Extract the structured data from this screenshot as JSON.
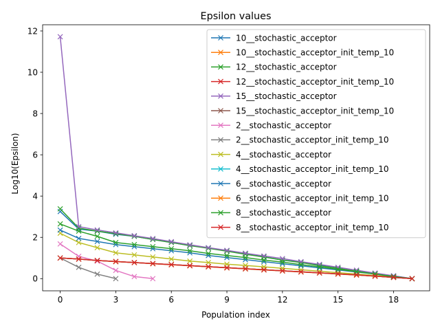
{
  "chart_data": {
    "type": "line",
    "title": "Epsilon values",
    "xlabel": "Population index",
    "ylabel": "Log10(Epsilon)",
    "xlim": [
      -0.95,
      19.95
    ],
    "ylim": [
      -0.59,
      12.3
    ],
    "xticks": [
      0,
      3,
      6,
      9,
      12,
      15,
      18
    ],
    "yticks": [
      0,
      2,
      4,
      6,
      8,
      10,
      12
    ],
    "grid": false,
    "legend_position": "top-right",
    "marker": "x",
    "series": [
      {
        "name": "10__stochastic_acceptor",
        "color": "#1f77b4",
        "x": [
          0,
          1,
          2,
          3,
          4,
          5,
          6,
          7,
          8,
          9,
          10,
          11,
          12,
          13,
          14,
          15,
          16,
          17,
          18,
          19
        ],
        "y": [
          3.25,
          2.4,
          2.3,
          2.15,
          2.05,
          1.9,
          1.75,
          1.6,
          1.5,
          1.35,
          1.2,
          1.05,
          0.9,
          0.8,
          0.65,
          0.5,
          0.35,
          0.25,
          0.12,
          0.0
        ]
      },
      {
        "name": "10__stochastic_acceptor_init_temp_10",
        "color": "#ff7f0e",
        "x": [
          0,
          1,
          2,
          3,
          4,
          5,
          6,
          7,
          8,
          9,
          10,
          11,
          12,
          13,
          14,
          15,
          16,
          17,
          18,
          19
        ],
        "y": [
          1.0,
          0.95,
          0.88,
          0.82,
          0.78,
          0.72,
          0.67,
          0.62,
          0.57,
          0.52,
          0.47,
          0.42,
          0.37,
          0.32,
          0.27,
          0.22,
          0.17,
          0.12,
          0.06,
          0.0
        ]
      },
      {
        "name": "12__stochastic_acceptor",
        "color": "#2ca02c",
        "x": [
          0,
          1,
          2,
          3,
          4,
          5,
          6,
          7,
          8,
          9,
          10,
          11,
          12,
          13,
          14,
          15,
          16,
          17,
          18,
          19
        ],
        "y": [
          3.38,
          2.45,
          2.3,
          2.18,
          2.05,
          1.9,
          1.75,
          1.6,
          1.47,
          1.33,
          1.18,
          1.05,
          0.9,
          0.78,
          0.63,
          0.5,
          0.36,
          0.24,
          0.12,
          0.0
        ]
      },
      {
        "name": "12__stochastic_acceptor_init_temp_10",
        "color": "#d62728",
        "x": [
          0,
          1,
          2,
          3,
          4,
          5,
          6,
          7,
          8,
          9,
          10,
          11,
          12,
          13,
          14,
          15,
          16,
          17,
          18,
          19
        ],
        "y": [
          1.0,
          0.95,
          0.88,
          0.83,
          0.78,
          0.73,
          0.68,
          0.63,
          0.58,
          0.53,
          0.48,
          0.43,
          0.38,
          0.33,
          0.28,
          0.23,
          0.18,
          0.12,
          0.06,
          0.0
        ]
      },
      {
        "name": "15__stochastic_acceptor",
        "color": "#9467bd",
        "x": [
          0,
          1,
          2,
          3,
          4,
          5,
          6,
          7,
          8,
          9,
          10,
          11,
          12,
          13,
          14,
          15,
          16,
          17,
          18,
          19
        ],
        "y": [
          11.72,
          2.52,
          2.36,
          2.22,
          2.08,
          1.94,
          1.79,
          1.64,
          1.5,
          1.37,
          1.23,
          1.1,
          0.97,
          0.82,
          0.69,
          0.55,
          0.41,
          0.27,
          0.14,
          0.0
        ]
      },
      {
        "name": "15__stochastic_acceptor_init_temp_10",
        "color": "#8c564b",
        "x": [
          0,
          1,
          2,
          3,
          4,
          5,
          6,
          7,
          8,
          9,
          10,
          11,
          12,
          13,
          14,
          15,
          16,
          17,
          18,
          19
        ],
        "y": [
          1.0,
          0.95,
          0.88,
          0.83,
          0.78,
          0.73,
          0.68,
          0.63,
          0.58,
          0.53,
          0.48,
          0.43,
          0.38,
          0.33,
          0.28,
          0.23,
          0.18,
          0.12,
          0.06,
          0.0
        ]
      },
      {
        "name": "2__stochastic_acceptor",
        "color": "#e377c2",
        "x": [
          0,
          1,
          2,
          3,
          4,
          5
        ],
        "y": [
          1.68,
          1.08,
          0.85,
          0.4,
          0.1,
          0.0
        ]
      },
      {
        "name": "2__stochastic_acceptor_init_temp_10",
        "color": "#7f7f7f",
        "x": [
          0,
          1,
          2,
          3
        ],
        "y": [
          1.0,
          0.55,
          0.22,
          0.0
        ]
      },
      {
        "name": "4__stochastic_acceptor",
        "color": "#bcbd22",
        "x": [
          0,
          1,
          2,
          3,
          4,
          5,
          6,
          7,
          8,
          9,
          10,
          11,
          12,
          13,
          14,
          15,
          16,
          17,
          18,
          19
        ],
        "y": [
          2.2,
          1.75,
          1.5,
          1.25,
          1.15,
          1.05,
          0.95,
          0.85,
          0.78,
          0.7,
          0.64,
          0.57,
          0.5,
          0.43,
          0.36,
          0.29,
          0.22,
          0.15,
          0.08,
          0.0
        ]
      },
      {
        "name": "4__stochastic_acceptor_init_temp_10",
        "color": "#17becf",
        "x": [
          0,
          1,
          2,
          3,
          4,
          5,
          6,
          7,
          8,
          9,
          10,
          11,
          12,
          13,
          14,
          15,
          16,
          17,
          18,
          19
        ],
        "y": [
          1.0,
          0.95,
          0.88,
          0.83,
          0.78,
          0.73,
          0.68,
          0.63,
          0.58,
          0.53,
          0.48,
          0.43,
          0.38,
          0.33,
          0.28,
          0.23,
          0.18,
          0.12,
          0.06,
          0.0
        ]
      },
      {
        "name": "6__stochastic_acceptor",
        "color": "#1f77b4",
        "x": [
          0,
          1,
          2,
          3,
          4,
          5,
          6,
          7,
          8,
          9,
          10,
          11,
          12,
          13,
          14,
          15,
          16,
          17,
          18,
          19
        ],
        "y": [
          2.35,
          1.95,
          1.8,
          1.65,
          1.55,
          1.45,
          1.35,
          1.25,
          1.12,
          1.02,
          0.92,
          0.82,
          0.72,
          0.62,
          0.52,
          0.42,
          0.32,
          0.22,
          0.1,
          0.0
        ]
      },
      {
        "name": "6__stochastic_acceptor_init_temp_10",
        "color": "#ff7f0e",
        "x": [
          0,
          1,
          2,
          3,
          4,
          5,
          6,
          7,
          8,
          9,
          10,
          11,
          12,
          13,
          14,
          15,
          16,
          17,
          18,
          19
        ],
        "y": [
          1.0,
          0.95,
          0.88,
          0.83,
          0.78,
          0.73,
          0.68,
          0.63,
          0.58,
          0.53,
          0.48,
          0.43,
          0.38,
          0.33,
          0.28,
          0.23,
          0.18,
          0.12,
          0.06,
          0.0
        ]
      },
      {
        "name": "8__stochastic_acceptor",
        "color": "#2ca02c",
        "x": [
          0,
          1,
          2,
          3,
          4,
          5,
          6,
          7,
          8,
          9,
          10,
          11,
          12,
          13,
          14,
          15,
          16,
          17,
          18,
          19
        ],
        "y": [
          2.65,
          2.3,
          2.05,
          1.75,
          1.65,
          1.55,
          1.45,
          1.35,
          1.22,
          1.12,
          1.02,
          0.9,
          0.8,
          0.68,
          0.57,
          0.45,
          0.34,
          0.22,
          0.1,
          0.0
        ]
      },
      {
        "name": "8__stochastic_acceptor_init_temp_10",
        "color": "#d62728",
        "x": [
          0,
          1,
          2,
          3,
          4,
          5,
          6,
          7,
          8,
          9,
          10,
          11,
          12,
          13,
          14,
          15,
          16,
          17,
          18,
          19
        ],
        "y": [
          1.0,
          0.95,
          0.88,
          0.83,
          0.78,
          0.73,
          0.68,
          0.63,
          0.58,
          0.53,
          0.48,
          0.43,
          0.38,
          0.33,
          0.28,
          0.23,
          0.18,
          0.12,
          0.06,
          0.0
        ]
      }
    ]
  }
}
